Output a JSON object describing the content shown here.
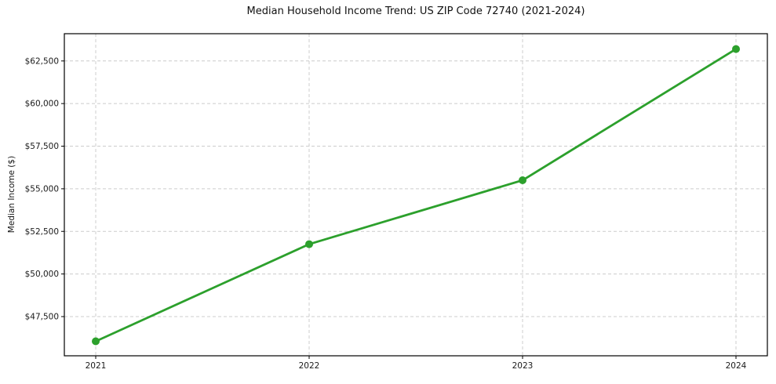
{
  "figure": {
    "background": "#ffffff"
  },
  "chart_data": {
    "type": "line",
    "title": "Median Household Income Trend: US ZIP Code 72740 (2021-2024)",
    "xlabel": "",
    "ylabel": "Median Income ($)",
    "categories": [
      "2021",
      "2022",
      "2023",
      "2024"
    ],
    "values": [
      46050,
      51750,
      55500,
      63200
    ],
    "ylim": [
      45200,
      64100
    ],
    "yticks": [
      {
        "value": 47500,
        "label": "$47,500"
      },
      {
        "value": 50000,
        "label": "$50,000"
      },
      {
        "value": 52500,
        "label": "$52,500"
      },
      {
        "value": 55000,
        "label": "$55,000"
      },
      {
        "value": 57500,
        "label": "$57,500"
      },
      {
        "value": 60000,
        "label": "$60,000"
      },
      {
        "value": 62500,
        "label": "$62,500"
      }
    ],
    "grid": true,
    "grid_style": "dashed",
    "legend_position": "none",
    "line_color": "#2ca02c",
    "marker": "circle",
    "marker_color": "#2ca02c",
    "grid_color": "#cccccc",
    "axis_color": "#000000",
    "text_color": "#1a1a1a"
  }
}
